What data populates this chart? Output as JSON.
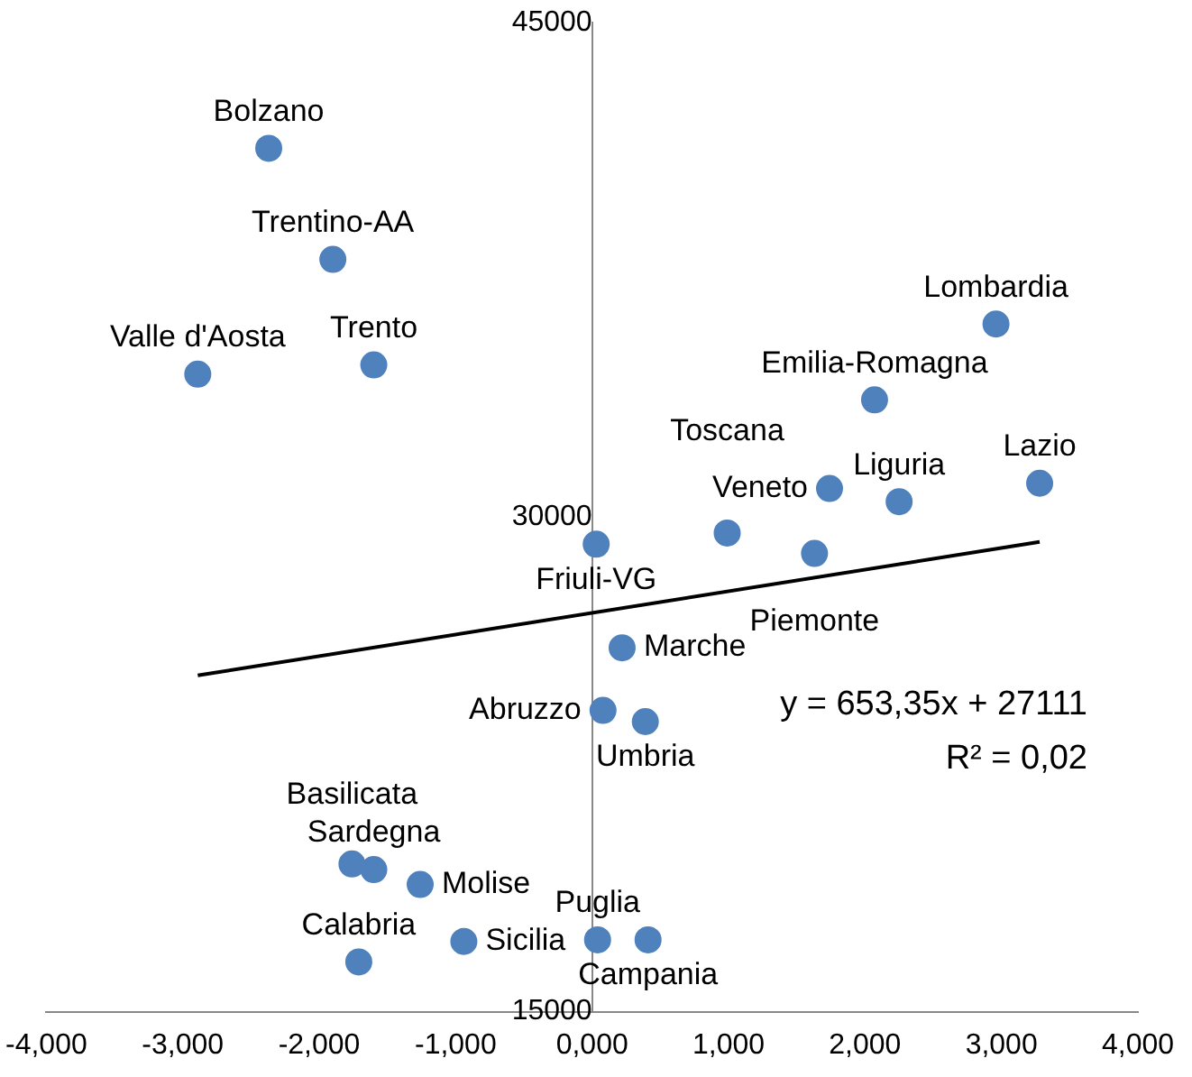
{
  "chart_data": {
    "type": "scatter",
    "xlim": [
      -4,
      4
    ],
    "xticks": [
      {
        "value": -4,
        "label": "-4,000"
      },
      {
        "value": -3,
        "label": "-3,000"
      },
      {
        "value": -2,
        "label": "-2,000"
      },
      {
        "value": -1,
        "label": "-1,000"
      },
      {
        "value": 0,
        "label": "0,000"
      },
      {
        "value": 1,
        "label": "1,000"
      },
      {
        "value": 2,
        "label": "2,000"
      },
      {
        "value": 3,
        "label": "3,000"
      },
      {
        "value": 4,
        "label": "4,000"
      }
    ],
    "ylim": [
      15000,
      45000
    ],
    "yticks": [
      15000,
      30000,
      45000
    ],
    "grid": false,
    "legend": false,
    "marker": "circle",
    "series": [
      {
        "color": "#4f81bd",
        "x": [
          -2.37,
          -1.9,
          -2.89,
          -1.6,
          2.96,
          2.07,
          3.28,
          2.25,
          1.74,
          0.99,
          1.63,
          0.03,
          0.22,
          0.08,
          0.39,
          -1.6,
          -1.76,
          -1.26,
          -0.94,
          -1.71,
          0.04,
          0.41
        ],
        "values": [
          41190,
          37820,
          34340,
          34620,
          35860,
          33560,
          31030,
          30470,
          30870,
          29520,
          28900,
          29180,
          26040,
          24140,
          23800,
          19310,
          19480,
          18860,
          17130,
          16510,
          17180,
          17180
        ]
      },
      {
        "type": "line",
        "color": "#000000",
        "line_style": "solid",
        "marker": "none",
        "x": [
          -2.89,
          3.28
        ],
        "values": [
          25200,
          29250
        ]
      }
    ],
    "annotations": [
      {
        "text": "Bolzano",
        "x": -2.37,
        "y": 41190
      },
      {
        "text": "Trentino-AA",
        "x": -1.9,
        "y": 37820
      },
      {
        "text": "Valle d'Aosta",
        "x": -2.89,
        "y": 34340
      },
      {
        "text": "Trento",
        "x": -1.6,
        "y": 34620
      },
      {
        "text": "Lombardia",
        "x": 2.96,
        "y": 35860
      },
      {
        "text": "Emilia-Romagna",
        "x": 2.07,
        "y": 33560
      },
      {
        "text": "Lazio",
        "x": 3.28,
        "y": 31030
      },
      {
        "text": "Liguria",
        "x": 2.25,
        "y": 30470
      },
      {
        "text": "Veneto",
        "x": 1.74,
        "y": 30870
      },
      {
        "text": "Toscana",
        "x": 0.99,
        "y": 29520
      },
      {
        "text": "Piemonte",
        "x": 1.63,
        "y": 28900
      },
      {
        "text": "Friuli-VG",
        "x": 0.03,
        "y": 29180
      },
      {
        "text": "Marche",
        "x": 0.22,
        "y": 26040
      },
      {
        "text": "Abruzzo",
        "x": 0.08,
        "y": 24140
      },
      {
        "text": "Umbria",
        "x": 0.39,
        "y": 23800
      },
      {
        "text": "Sardegna",
        "x": -1.6,
        "y": 19310
      },
      {
        "text": "Basilicata",
        "x": -1.76,
        "y": 19480
      },
      {
        "text": "Molise",
        "x": -1.26,
        "y": 18860
      },
      {
        "text": "Sicilia",
        "x": -0.94,
        "y": 17130
      },
      {
        "text": "Calabria",
        "x": -1.71,
        "y": 16510
      },
      {
        "text": "Puglia",
        "x": 0.04,
        "y": 17180
      },
      {
        "text": "Campania",
        "x": 0.41,
        "y": 17180
      },
      "y = 653,35x + 27111",
      "R² = 0,02"
    ]
  }
}
